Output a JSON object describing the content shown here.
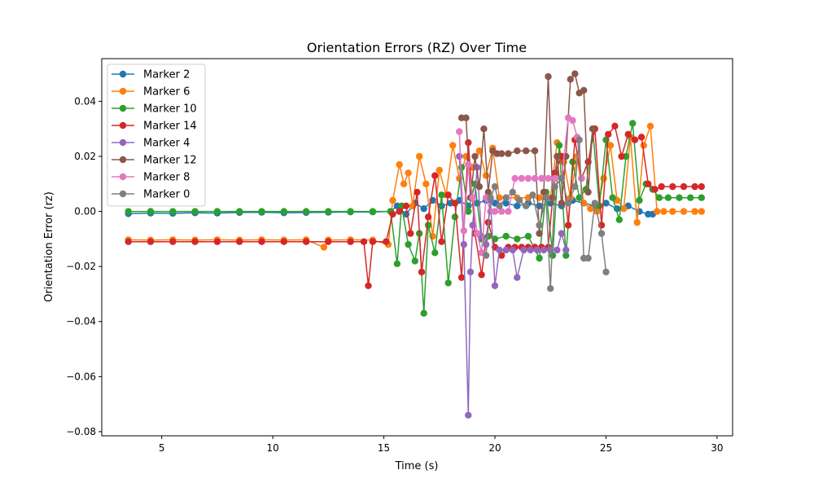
{
  "chart_data": {
    "type": "line",
    "title": "Orientation Errors (RZ) Over Time",
    "xlabel": "Time (s)",
    "ylabel": "Orientation Error (rz)",
    "xlim": [
      2.3,
      30.7
    ],
    "ylim": [
      -0.0815,
      0.0555
    ],
    "xticks": [
      5,
      10,
      15,
      20,
      25,
      30
    ],
    "xtick_labels": [
      "5",
      "10",
      "15",
      "20",
      "25",
      "30"
    ],
    "yticks": [
      -0.08,
      -0.06,
      -0.04,
      -0.02,
      0.0,
      0.02,
      0.04
    ],
    "ytick_labels": [
      "−0.08",
      "−0.06",
      "−0.04",
      "−0.02",
      "0.00",
      "0.02",
      "0.04"
    ],
    "grid": false,
    "legend_position": "upper-left",
    "series": [
      {
        "name": "Marker 2",
        "color": "#1f77b4",
        "x": [
          3.5,
          4.5,
          5.5,
          6.5,
          7.5,
          8.5,
          9.5,
          10.5,
          11.5,
          12.5,
          13.5,
          14.5,
          15.3,
          15.6,
          16.0,
          16.4,
          16.8,
          17.2,
          17.6,
          18.0,
          18.4,
          18.8,
          19.2,
          19.6,
          20.0,
          20.5,
          21.0,
          21.5,
          22.0,
          22.5,
          23.0,
          23.5,
          24.0,
          24.5,
          25.0,
          25.5,
          26.0,
          26.5,
          26.9,
          27.1
        ],
        "y": [
          -0.0008,
          -0.0006,
          -0.0007,
          -0.0005,
          -0.0006,
          -0.0004,
          -0.0003,
          -0.0005,
          -0.0004,
          -0.0003,
          -0.0002,
          -0.0002,
          0.0,
          0.002,
          -0.001,
          0.003,
          0.001,
          0.004,
          0.002,
          0.003,
          0.004,
          0.002,
          0.003,
          0.004,
          0.003,
          0.003,
          0.002,
          0.003,
          0.002,
          0.003,
          0.002,
          0.004,
          0.003,
          0.002,
          0.003,
          0.001,
          0.002,
          0.0,
          -0.001,
          -0.001
        ]
      },
      {
        "name": "Marker 6",
        "color": "#ff7f0e",
        "x": [
          3.5,
          4.5,
          5.5,
          6.5,
          7.5,
          8.5,
          9.5,
          10.5,
          11.5,
          12.3,
          12.5,
          13.5,
          14.5,
          15.2,
          15.4,
          15.7,
          15.9,
          16.1,
          16.3,
          16.6,
          16.9,
          17.2,
          17.5,
          17.8,
          18.1,
          18.4,
          18.7,
          19.0,
          19.3,
          19.6,
          19.9,
          20.2,
          20.5,
          21.0,
          21.5,
          22.0,
          22.5,
          22.8,
          23.1,
          23.4,
          23.7,
          24.0,
          24.3,
          24.6,
          24.9,
          25.2,
          25.5,
          25.8,
          26.1,
          26.4,
          26.7,
          27.0,
          27.3,
          27.6,
          28.0,
          28.5,
          29.0,
          29.3
        ],
        "y": [
          -0.0103,
          -0.0104,
          -0.0103,
          -0.0104,
          -0.0103,
          -0.0104,
          -0.0103,
          -0.0104,
          -0.0103,
          -0.013,
          -0.0104,
          -0.0103,
          -0.0104,
          -0.012,
          0.004,
          0.017,
          0.01,
          0.014,
          0.002,
          0.02,
          0.01,
          -0.009,
          0.015,
          0.006,
          0.024,
          0.012,
          0.02,
          0.016,
          0.022,
          0.013,
          0.023,
          0.005,
          0.005,
          0.005,
          0.005,
          0.005,
          0.005,
          0.025,
          0.018,
          0.005,
          0.02,
          0.003,
          0.001,
          0.0,
          0.012,
          0.024,
          0.004,
          0.001,
          0.027,
          -0.004,
          0.024,
          0.031,
          0.0,
          0.0,
          0.0,
          0.0,
          0.0,
          0.0
        ]
      },
      {
        "name": "Marker 10",
        "color": "#2ca02c",
        "x": [
          3.5,
          4.5,
          5.5,
          6.5,
          7.5,
          8.5,
          9.5,
          10.5,
          11.5,
          12.5,
          13.5,
          14.5,
          15.3,
          15.6,
          15.8,
          16.1,
          16.4,
          16.6,
          16.8,
          17.0,
          17.3,
          17.6,
          17.9,
          18.2,
          18.5,
          18.8,
          19.1,
          19.4,
          19.7,
          20.0,
          20.5,
          21.0,
          21.5,
          22.0,
          22.3,
          22.6,
          22.9,
          23.2,
          23.5,
          23.8,
          24.1,
          24.4,
          24.7,
          25.0,
          25.3,
          25.6,
          25.9,
          26.2,
          26.5,
          26.8,
          27.1,
          27.4,
          27.8,
          28.3,
          28.8,
          29.3
        ],
        "y": [
          0.0,
          0.0,
          0.0,
          0.0,
          0.0,
          0.0,
          0.0,
          0.0,
          0.0,
          0.0,
          0.0,
          0.0,
          0.0,
          -0.019,
          0.002,
          -0.012,
          -0.018,
          -0.008,
          -0.037,
          -0.005,
          -0.015,
          0.006,
          -0.026,
          -0.002,
          0.016,
          0.0,
          0.01,
          -0.01,
          -0.009,
          -0.01,
          -0.009,
          -0.01,
          -0.009,
          -0.017,
          0.007,
          -0.016,
          0.024,
          -0.016,
          0.018,
          0.005,
          0.008,
          0.03,
          0.002,
          0.026,
          0.005,
          -0.003,
          0.02,
          0.032,
          0.004,
          0.01,
          0.008,
          0.005,
          0.005,
          0.005,
          0.005,
          0.005
        ]
      },
      {
        "name": "Marker 14",
        "color": "#d62728",
        "x": [
          3.5,
          4.5,
          5.5,
          6.5,
          7.5,
          8.5,
          9.5,
          10.5,
          11.5,
          12.5,
          13.5,
          14.1,
          14.3,
          14.5,
          15.1,
          15.4,
          15.7,
          16.0,
          16.2,
          16.5,
          16.7,
          17.0,
          17.3,
          17.6,
          17.9,
          18.2,
          18.5,
          18.8,
          19.1,
          19.4,
          19.7,
          20.0,
          20.3,
          20.6,
          20.9,
          21.2,
          21.5,
          21.8,
          22.1,
          22.4,
          22.7,
          23.0,
          23.3,
          23.6,
          23.9,
          24.2,
          24.5,
          24.8,
          25.1,
          25.4,
          25.7,
          26.0,
          26.3,
          26.6,
          26.9,
          27.2,
          27.5,
          28.0,
          28.5,
          29.0,
          29.3
        ],
        "y": [
          -0.011,
          -0.011,
          -0.011,
          -0.011,
          -0.011,
          -0.011,
          -0.011,
          -0.011,
          -0.011,
          -0.011,
          -0.011,
          -0.011,
          -0.027,
          -0.011,
          -0.011,
          -0.001,
          0.0,
          0.002,
          -0.008,
          0.007,
          -0.022,
          -0.002,
          0.013,
          -0.011,
          0.006,
          0.003,
          -0.024,
          0.025,
          -0.008,
          -0.023,
          -0.004,
          -0.013,
          -0.016,
          -0.013,
          -0.013,
          -0.013,
          -0.013,
          -0.013,
          -0.013,
          -0.013,
          0.014,
          0.02,
          -0.005,
          0.026,
          0.012,
          0.018,
          0.03,
          -0.005,
          0.028,
          0.031,
          0.02,
          0.028,
          0.026,
          0.027,
          0.01,
          0.008,
          0.009,
          0.009,
          0.009,
          0.009,
          0.009
        ]
      },
      {
        "name": "Marker 4",
        "color": "#9467bd",
        "x": [
          18.4,
          18.6,
          18.8,
          18.9,
          19.0,
          19.2,
          19.4,
          19.6,
          19.8,
          20.0,
          20.2,
          20.5,
          20.8,
          21.0,
          21.3,
          21.6,
          21.9,
          22.2,
          22.5,
          22.8,
          23.0,
          23.2
        ],
        "y": [
          0.02,
          -0.012,
          -0.074,
          -0.022,
          -0.005,
          0.016,
          -0.009,
          -0.012,
          0.004,
          -0.027,
          -0.014,
          -0.014,
          -0.014,
          -0.024,
          -0.014,
          -0.014,
          -0.014,
          -0.014,
          -0.014,
          -0.014,
          -0.008,
          -0.014
        ]
      },
      {
        "name": "Marker 12",
        "color": "#8c564b",
        "x": [
          18.5,
          18.7,
          18.9,
          19.1,
          19.3,
          19.5,
          19.7,
          19.9,
          20.1,
          20.3,
          20.6,
          21.0,
          21.4,
          21.8,
          22.0,
          22.2,
          22.4,
          22.6,
          22.8,
          23.0,
          23.2,
          23.4,
          23.6,
          23.8,
          24.0,
          24.2,
          24.4
        ],
        "y": [
          0.034,
          0.034,
          0.005,
          0.02,
          0.009,
          0.03,
          0.007,
          0.022,
          0.021,
          0.021,
          0.021,
          0.022,
          0.022,
          0.022,
          -0.008,
          0.007,
          0.049,
          0.005,
          0.02,
          0.003,
          0.02,
          0.048,
          0.05,
          0.043,
          0.044,
          0.007,
          0.03
        ]
      },
      {
        "name": "Marker 8",
        "color": "#e377c2",
        "x": [
          18.4,
          18.6,
          18.8,
          19.0,
          19.2,
          19.4,
          19.6,
          19.8,
          20.0,
          20.3,
          20.6,
          20.9,
          21.2,
          21.5,
          21.8,
          22.1,
          22.4,
          22.7,
          23.0,
          23.3,
          23.5,
          23.7,
          23.9
        ],
        "y": [
          0.029,
          -0.007,
          0.017,
          0.005,
          -0.008,
          -0.015,
          0.005,
          0.0,
          0.0,
          0.0,
          0.0,
          0.012,
          0.012,
          0.012,
          0.012,
          0.012,
          0.012,
          0.012,
          0.012,
          0.034,
          0.033,
          0.027,
          0.012
        ]
      },
      {
        "name": "Marker 0",
        "color": "#7f7f7f",
        "x": [
          19.6,
          19.8,
          20.0,
          20.2,
          20.5,
          20.8,
          21.1,
          21.4,
          21.7,
          22.0,
          22.3,
          22.5,
          22.7,
          23.0,
          23.3,
          23.6,
          23.8,
          24.0,
          24.2,
          24.5,
          24.8,
          25.0
        ],
        "y": [
          -0.016,
          0.005,
          0.009,
          0.002,
          0.005,
          0.007,
          0.004,
          0.002,
          0.006,
          -0.005,
          0.005,
          -0.028,
          0.009,
          0.012,
          0.003,
          0.009,
          0.026,
          -0.017,
          -0.017,
          0.003,
          -0.008,
          -0.022
        ]
      }
    ]
  }
}
